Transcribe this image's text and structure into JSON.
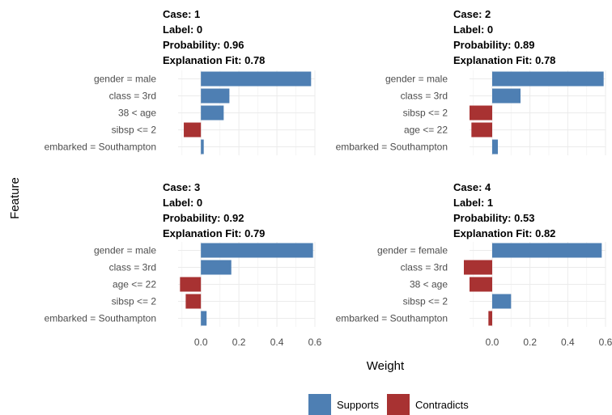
{
  "chart_data": {
    "type": "bar",
    "orientation": "horizontal",
    "xlabel": "Weight",
    "ylabel": "Feature",
    "xlim": [
      -0.12,
      0.6
    ],
    "xticks": [
      "0.0",
      "0.2",
      "0.4",
      "0.6"
    ],
    "grid": true,
    "colors": {
      "Supports": "#4e7fb3",
      "Contradicts": "#a83232"
    },
    "legend": {
      "position": "bottom",
      "entries": [
        "Supports",
        "Contradicts"
      ]
    },
    "panels": [
      {
        "title_lines": [
          "Case: 1",
          "Label: 0",
          "Probability: 0.96",
          "Explanation Fit: 0.78"
        ],
        "features": [
          "gender = male",
          "class = 3rd",
          "38 < age",
          "sibsp <= 2",
          "embarked = Southampton"
        ],
        "values": [
          0.58,
          0.15,
          0.12,
          -0.09,
          0.015
        ]
      },
      {
        "title_lines": [
          "Case: 2",
          "Label: 0",
          "Probability: 0.89",
          "Explanation Fit: 0.78"
        ],
        "features": [
          "gender = male",
          "class = 3rd",
          "sibsp <= 2",
          "age <= 22",
          "embarked = Southampton"
        ],
        "values": [
          0.59,
          0.15,
          -0.12,
          -0.11,
          0.03
        ]
      },
      {
        "title_lines": [
          "Case: 3",
          "Label: 0",
          "Probability: 0.92",
          "Explanation Fit: 0.79"
        ],
        "features": [
          "gender = male",
          "class = 3rd",
          "age <= 22",
          "sibsp <= 2",
          "embarked = Southampton"
        ],
        "values": [
          0.59,
          0.16,
          -0.11,
          -0.08,
          0.03
        ]
      },
      {
        "title_lines": [
          "Case: 4",
          "Label: 1",
          "Probability: 0.53",
          "Explanation Fit: 0.82"
        ],
        "features": [
          "gender = female",
          "class = 3rd",
          "38 < age",
          "sibsp <= 2",
          "embarked = Southampton"
        ],
        "values": [
          0.58,
          -0.15,
          -0.12,
          0.1,
          -0.02
        ]
      }
    ]
  }
}
